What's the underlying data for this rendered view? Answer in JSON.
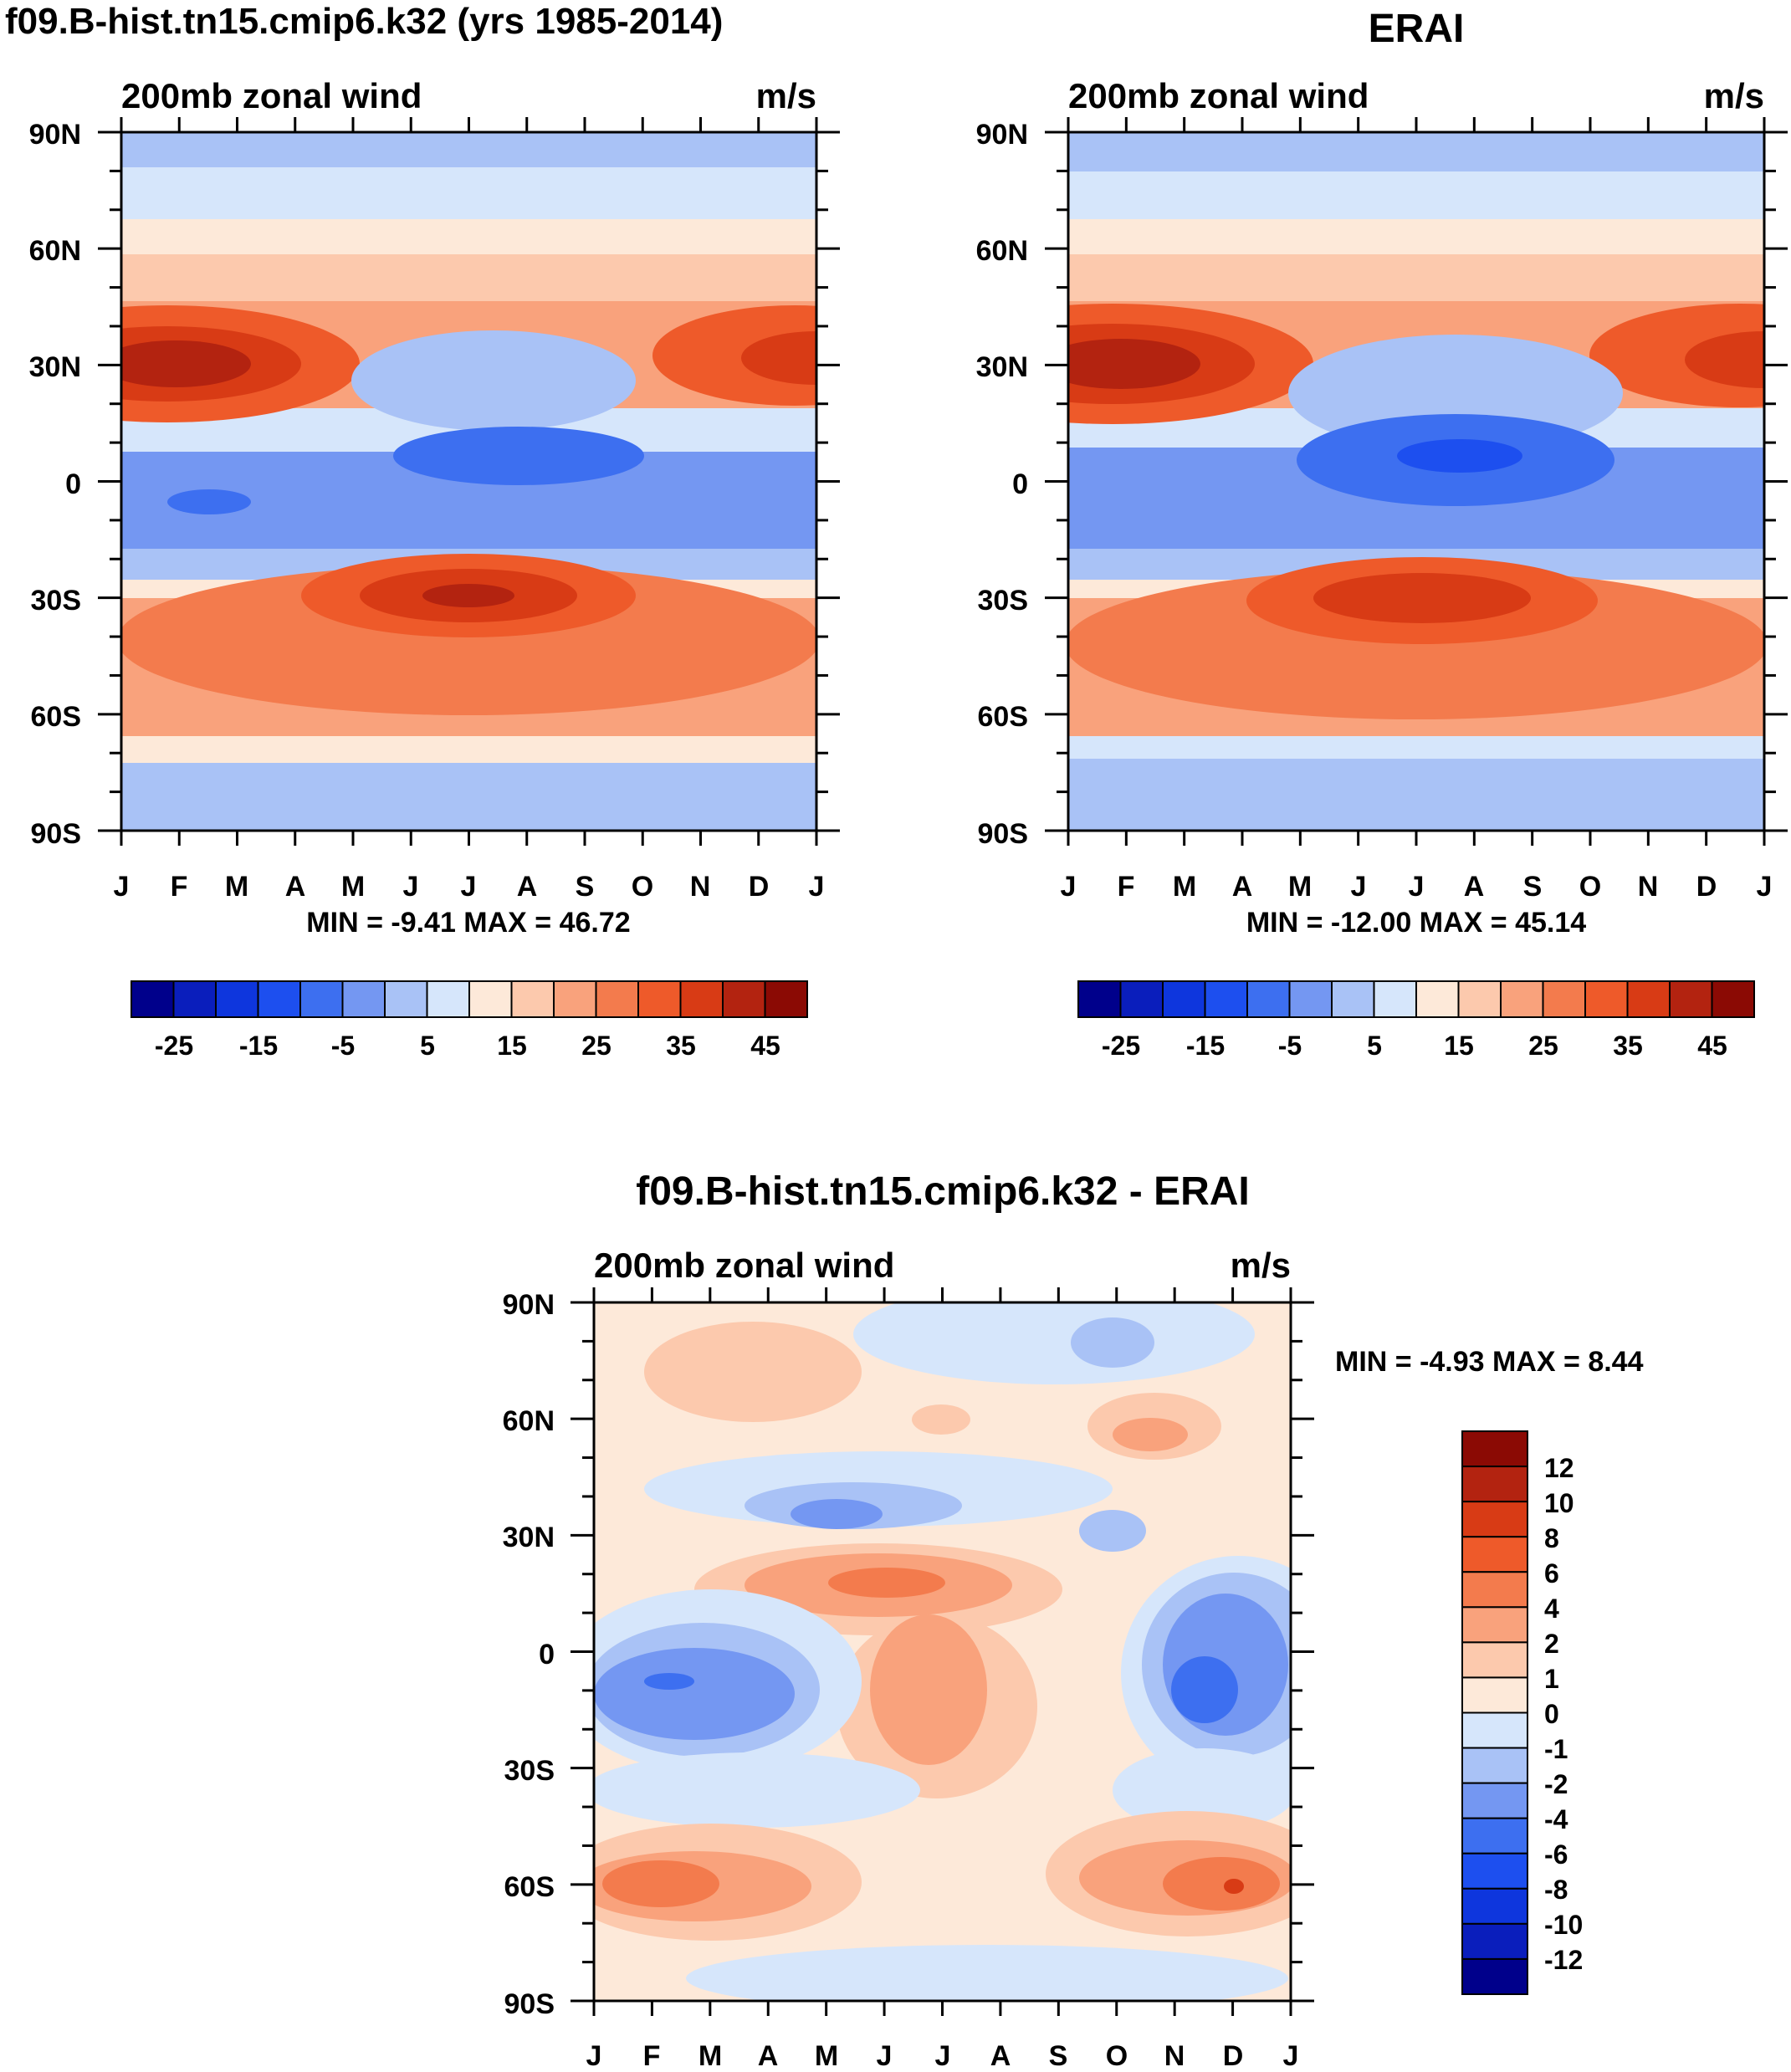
{
  "figure": {
    "palette": [
      "#00008b",
      "#0a1ebc",
      "#0e36dd",
      "#1d4fef",
      "#3d6ff0",
      "#7497f2",
      "#a9c2f6",
      "#d6e6fb",
      "#fde9d9",
      "#fcc9ad",
      "#f9a27c",
      "#f37b4d",
      "#ee5a2a",
      "#d83b15",
      "#b32310",
      "#8b0a04"
    ],
    "month_labels": [
      "J",
      "F",
      "M",
      "A",
      "M",
      "J",
      "J",
      "A",
      "S",
      "O",
      "N",
      "D",
      "J"
    ],
    "lat_labels": [
      "90N",
      "60N",
      "30N",
      "0",
      "30S",
      "60S",
      "90S"
    ]
  },
  "chart_data": [
    {
      "id": "model",
      "type": "heatmap",
      "title": "f09.B-hist.tn15.cmip6.k32 (yrs 1985-2014)",
      "subtitle_left": "200mb zonal wind",
      "subtitle_right": "m/s",
      "x_labels": [
        "J",
        "F",
        "M",
        "A",
        "M",
        "J",
        "J",
        "A",
        "S",
        "O",
        "N",
        "D",
        "J"
      ],
      "y_labels": [
        "90N",
        "60N",
        "30N",
        "0",
        "30S",
        "60S",
        "90S"
      ],
      "ylim": [
        -90,
        90
      ],
      "stats_text": "MIN =  -9.41 MAX =  46.72",
      "min": -9.41,
      "max": 46.72,
      "colorbar_ticks": [
        "-25",
        "-15",
        "-5",
        "5",
        "15",
        "25",
        "35",
        "45"
      ],
      "levels": [
        -30,
        -25,
        -20,
        -15,
        -10,
        -5,
        0,
        5,
        10,
        15,
        20,
        25,
        30,
        35,
        40,
        45,
        50
      ]
    },
    {
      "id": "erai",
      "type": "heatmap",
      "title": "ERAI",
      "subtitle_left": "200mb zonal wind",
      "subtitle_right": "m/s",
      "x_labels": [
        "J",
        "F",
        "M",
        "A",
        "M",
        "J",
        "J",
        "A",
        "S",
        "O",
        "N",
        "D",
        "J"
      ],
      "y_labels": [
        "90N",
        "60N",
        "30N",
        "0",
        "30S",
        "60S",
        "90S"
      ],
      "ylim": [
        -90,
        90
      ],
      "stats_text": "MIN = -12.00 MAX =  45.14",
      "min": -12.0,
      "max": 45.14,
      "colorbar_ticks": [
        "-25",
        "-15",
        "-5",
        "5",
        "15",
        "25",
        "35",
        "45"
      ],
      "levels": [
        -30,
        -25,
        -20,
        -15,
        -10,
        -5,
        0,
        5,
        10,
        15,
        20,
        25,
        30,
        35,
        40,
        45,
        50
      ]
    },
    {
      "id": "diff",
      "type": "heatmap",
      "title": "f09.B-hist.tn15.cmip6.k32 - ERAI",
      "subtitle_left": "200mb zonal wind",
      "subtitle_right": "m/s",
      "x_labels": [
        "J",
        "F",
        "M",
        "A",
        "M",
        "J",
        "J",
        "A",
        "S",
        "O",
        "N",
        "D",
        "J"
      ],
      "y_labels": [
        "90N",
        "60N",
        "30N",
        "0",
        "30S",
        "60S",
        "90S"
      ],
      "ylim": [
        -90,
        90
      ],
      "stats_text": "MIN =  -4.93 MAX =   8.44",
      "min": -4.93,
      "max": 8.44,
      "colorbar_ticks": [
        "12",
        "10",
        "8",
        "6",
        "4",
        "2",
        "1",
        "0",
        "-1",
        "-2",
        "-4",
        "-6",
        "-8",
        "-10",
        "-12"
      ],
      "levels": [
        -14,
        -12,
        -10,
        -8,
        -6,
        -4,
        -2,
        -1,
        0,
        1,
        2,
        4,
        6,
        8,
        10,
        12,
        14
      ]
    }
  ]
}
